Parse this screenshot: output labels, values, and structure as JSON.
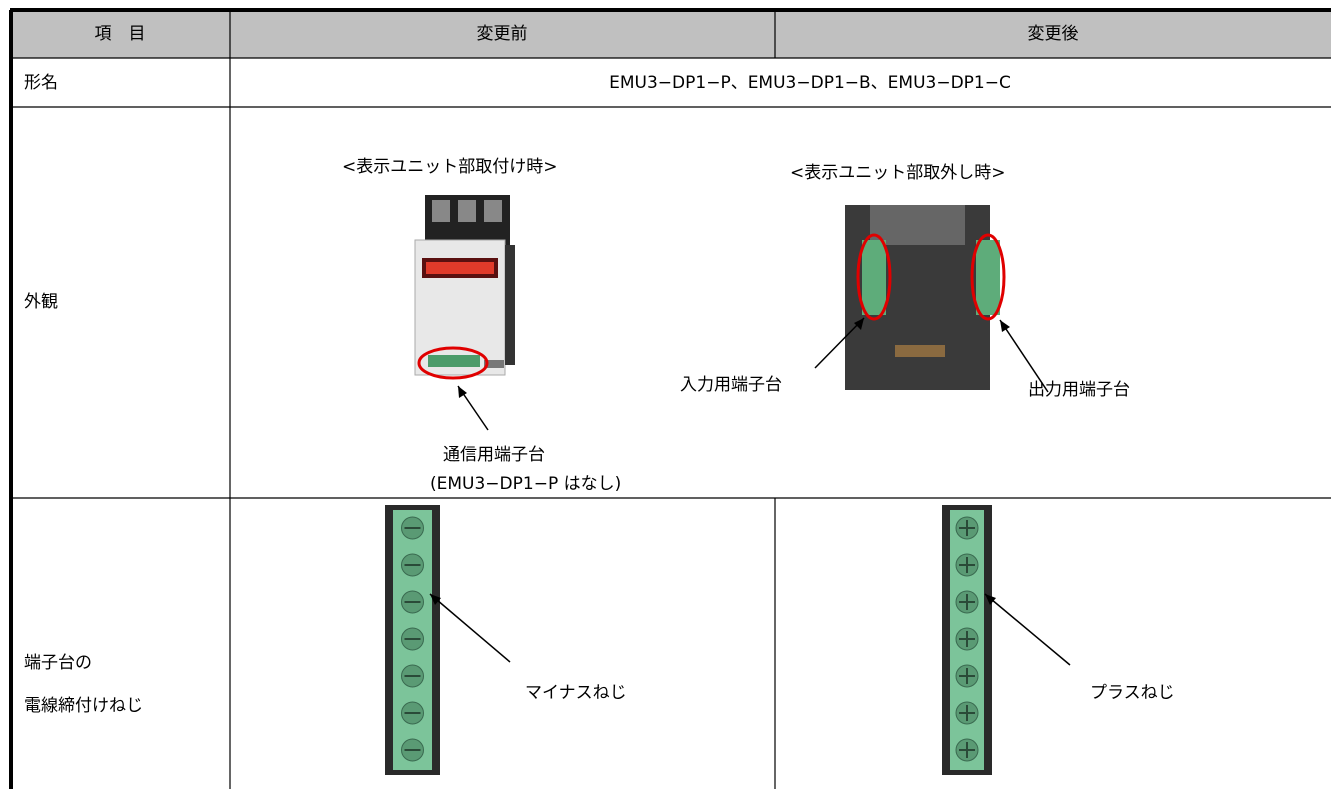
{
  "table": {
    "header": [
      "項　目",
      "変更前",
      "変更後"
    ],
    "rows": [
      {
        "label": "形名",
        "value": "EMU3−DP1−P、EMU3−DP1−B、EMU3−DP1−C"
      },
      {
        "label": "外観",
        "captions": [
          "<表示ユニット部取付け時>",
          "<表示ユニット部取外し時>"
        ],
        "callouts": [
          "入力用端子台",
          "出力用端子台",
          "通信用端子台",
          "(EMU3−DP1−P はなし)"
        ]
      },
      {
        "label": [
          "端子台の",
          "電線締付けねじ"
        ],
        "before": "マイナスねじ",
        "after": "プラスねじ"
      }
    ]
  }
}
